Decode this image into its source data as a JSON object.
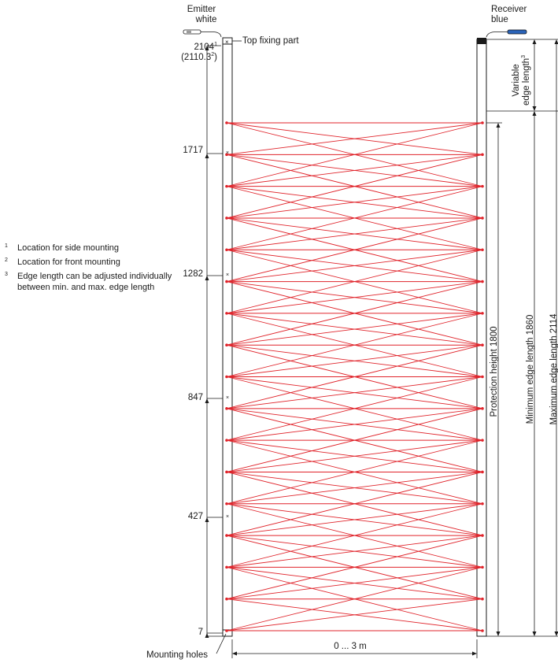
{
  "emitter": {
    "line1": "Emitter",
    "line2": "white"
  },
  "receiver": {
    "line1": "Receiver",
    "line2": "blue"
  },
  "top_fixing_label": "Top fixing part",
  "top_dimension": {
    "value": "2104",
    "value_sup": "1",
    "alt_value": "(2110.3",
    "alt_sup": "2",
    "alt_close": ")"
  },
  "height_marks": [
    "1717",
    "1282",
    "847",
    "427",
    "7"
  ],
  "notes": [
    {
      "num": "1",
      "text": "Location for side mounting"
    },
    {
      "num": "2",
      "text": "Location for front mounting"
    },
    {
      "num": "3",
      "text": "Edge length can be adjusted individually",
      "text2": "between min. and max. edge length"
    }
  ],
  "variable_edge": {
    "line1": "Variable",
    "line2": "edge length",
    "sup": "3"
  },
  "protection_height": "Protection height  1800",
  "minimum_edge_length": "Minimum edge length 1860",
  "maximum_edge_length": "Maximum edge length 2114",
  "distance_label": "0 ... 3 m",
  "mounting_holes_label": "Mounting holes",
  "colors": {
    "beam": "#e0242b",
    "line": "#1a1a1a",
    "receiver_blue": "#2a63b8"
  },
  "beam_count": 17
}
